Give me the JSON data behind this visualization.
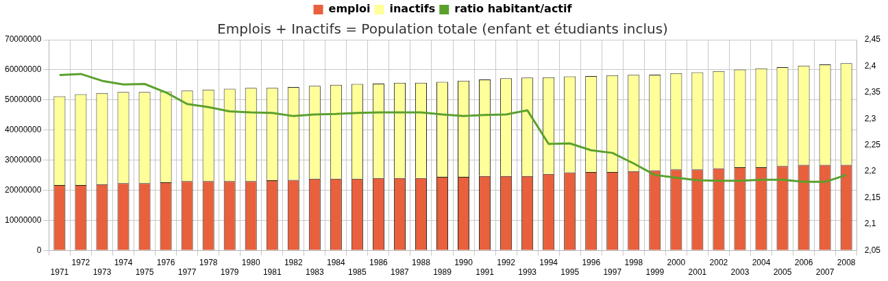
{
  "chart_data": {
    "type": "bar",
    "stacked": true,
    "title": "Emplois + Inactifs = Population totale (enfant et étudiants inclus)",
    "categories": [
      "1971",
      "1972",
      "1973",
      "1974",
      "1975",
      "1976",
      "1977",
      "1978",
      "1979",
      "1980",
      "1981",
      "1982",
      "1983",
      "1984",
      "1985",
      "1986",
      "1987",
      "1988",
      "1989",
      "1990",
      "1991",
      "1992",
      "1993",
      "1994",
      "1995",
      "1996",
      "1997",
      "1998",
      "1999",
      "2000",
      "2001",
      "2002",
      "2003",
      "2004",
      "2005",
      "2006",
      "2007",
      "2008"
    ],
    "series": [
      {
        "name": "emploi",
        "color": "#e8603c",
        "values": [
          21700000,
          21700000,
          22000000,
          22300000,
          22300000,
          22600000,
          23000000,
          23000000,
          23000000,
          23000000,
          23300000,
          23400000,
          23800000,
          23800000,
          23800000,
          24000000,
          24000000,
          24000000,
          24400000,
          24400000,
          24700000,
          24700000,
          24700000,
          25400000,
          25900000,
          26000000,
          26000000,
          26300000,
          26600000,
          26900000,
          26900000,
          27300000,
          27600000,
          27600000,
          28000000,
          28400000,
          28400000,
          28400000
        ]
      },
      {
        "name": "inactifs",
        "color": "#ffff99",
        "values": [
          29500000,
          30200000,
          30300000,
          30300000,
          30300000,
          30200000,
          30100000,
          30400000,
          30700000,
          31000000,
          30700000,
          30900000,
          30900000,
          31200000,
          31500000,
          31400000,
          31700000,
          31700000,
          31600000,
          32000000,
          32100000,
          32500000,
          32700000,
          32100000,
          31900000,
          31900000,
          32200000,
          32000000,
          31800000,
          32000000,
          32300000,
          32300000,
          32500000,
          32900000,
          32900000,
          33000000,
          33400000,
          33800000
        ]
      },
      {
        "name": "ratio habitant/actif",
        "type": "line",
        "axis": "y2",
        "color": "#5aa02c",
        "values": [
          2.383,
          2.385,
          2.372,
          2.365,
          2.366,
          2.35,
          2.328,
          2.322,
          2.314,
          2.312,
          2.311,
          2.305,
          2.308,
          2.309,
          2.311,
          2.312,
          2.312,
          2.312,
          2.308,
          2.305,
          2.307,
          2.308,
          2.316,
          2.252,
          2.253,
          2.24,
          2.235,
          2.215,
          2.193,
          2.188,
          2.183,
          2.182,
          2.182,
          2.184,
          2.184,
          2.18,
          2.18,
          2.193
        ]
      }
    ],
    "ylim": [
      0,
      70000000
    ],
    "yticks": [
      0,
      10000000,
      20000000,
      30000000,
      40000000,
      50000000,
      60000000,
      70000000
    ],
    "y2lim": [
      2.05,
      2.45
    ],
    "y2ticks": [
      {
        "value": 2.05,
        "label": "2,05"
      },
      {
        "value": 2.1,
        "label": "2,1"
      },
      {
        "value": 2.15,
        "label": "2,15"
      },
      {
        "value": 2.2,
        "label": "2,2"
      },
      {
        "value": 2.25,
        "label": "2,25"
      },
      {
        "value": 2.3,
        "label": "2,3"
      },
      {
        "value": 2.35,
        "label": "2,35"
      },
      {
        "value": 2.4,
        "label": "2,4"
      },
      {
        "value": 2.45,
        "label": "2,45"
      }
    ],
    "grid": true,
    "legend": "top",
    "marker": "none",
    "line_style": "solid"
  }
}
